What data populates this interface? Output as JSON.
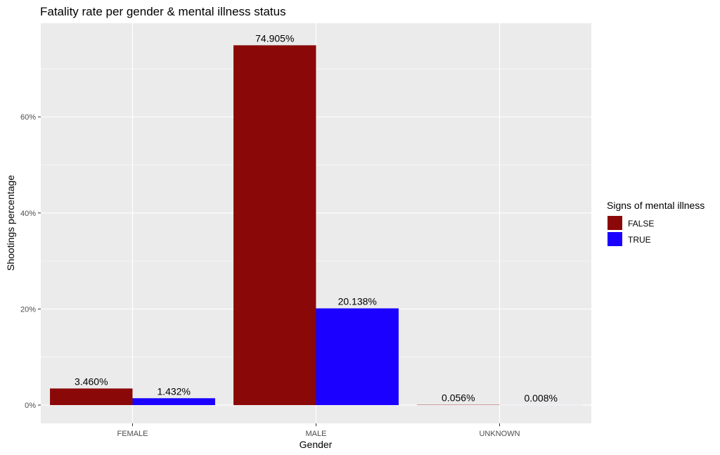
{
  "chart_data": {
    "type": "bar",
    "title": "Fatality rate per gender & mental illness status",
    "xlabel": "Gender",
    "ylabel": "Shootings percentage",
    "categories": [
      "FEMALE",
      "MALE",
      "UNKNOWN"
    ],
    "series": [
      {
        "name": "FALSE",
        "values": [
          3.46,
          74.905,
          0.056
        ],
        "labels": [
          "3.460%",
          "74.905%",
          "0.056%"
        ],
        "color": "#8B0809"
      },
      {
        "name": "TRUE",
        "values": [
          1.432,
          20.138,
          0.008
        ],
        "labels": [
          "1.432%",
          "20.138%",
          "0.008%"
        ],
        "color": "#1B00FF"
      }
    ],
    "ylim": [
      -3.8,
      79.5
    ],
    "yticks": [
      0,
      20,
      40,
      60
    ],
    "ytick_labels": [
      "0%",
      "20%",
      "40%",
      "60%"
    ],
    "grid": true,
    "legend": {
      "title": "Signs of mental illness",
      "position": "right"
    },
    "colors": {
      "panel_background": "#EBEBEB",
      "grid": "#FFFFFF"
    }
  }
}
